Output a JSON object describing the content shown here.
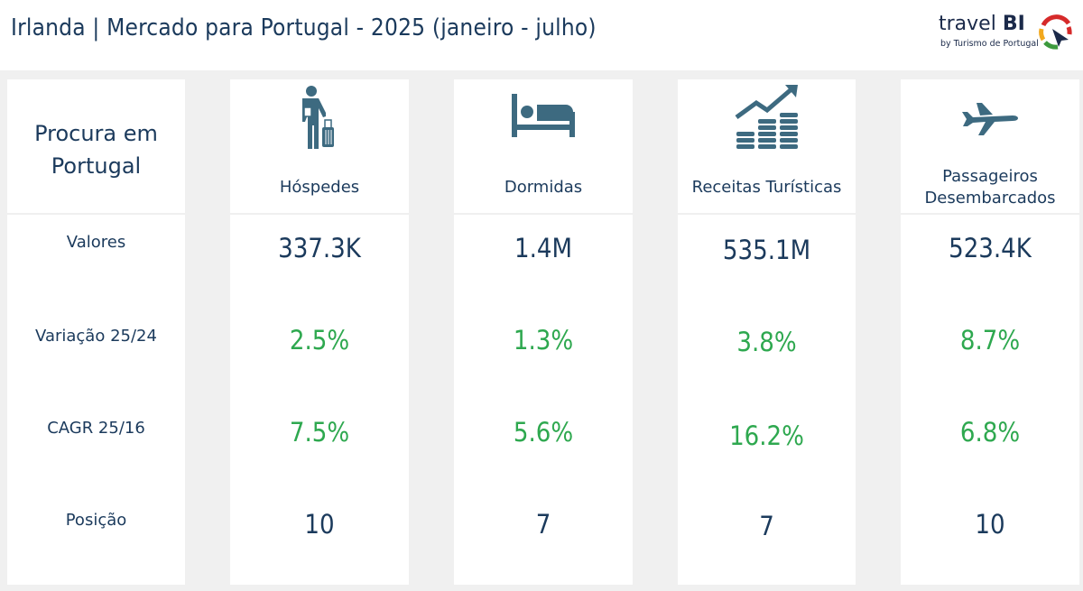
{
  "title": "Irlanda | Mercado para Portugal - 2025 (janeiro - julho)",
  "logo": {
    "brand": "travel",
    "brand_bold": "BI",
    "sub": "by Turismo de Portugal"
  },
  "side": {
    "heading": "Procura em Portugal",
    "rows": [
      "Valores",
      "Variação 25/24",
      "CAGR 25/16",
      "Posição"
    ]
  },
  "colors": {
    "text": "#1b3a5c",
    "positive": "#2ea84f",
    "icon": "#3d6a80"
  },
  "columns": [
    {
      "label": "Hóspedes",
      "icon": "traveler-icon",
      "valor": "337.3K",
      "variacao": "2.5%",
      "cagr": "7.5%",
      "posicao": "10"
    },
    {
      "label": "Dormidas",
      "icon": "bed-icon",
      "valor": "1.4M",
      "variacao": "1.3%",
      "cagr": "5.6%",
      "posicao": "7"
    },
    {
      "label": "Receitas Turísticas",
      "icon": "coins-growth-icon",
      "valor": "535.1M",
      "variacao": "3.8%",
      "cagr": "16.2%",
      "posicao": "7"
    },
    {
      "label": "Passageiros Desembarcados",
      "icon": "airplane-icon",
      "valor": "523.4K",
      "variacao": "8.7%",
      "cagr": "6.8%",
      "posicao": "10"
    }
  ]
}
